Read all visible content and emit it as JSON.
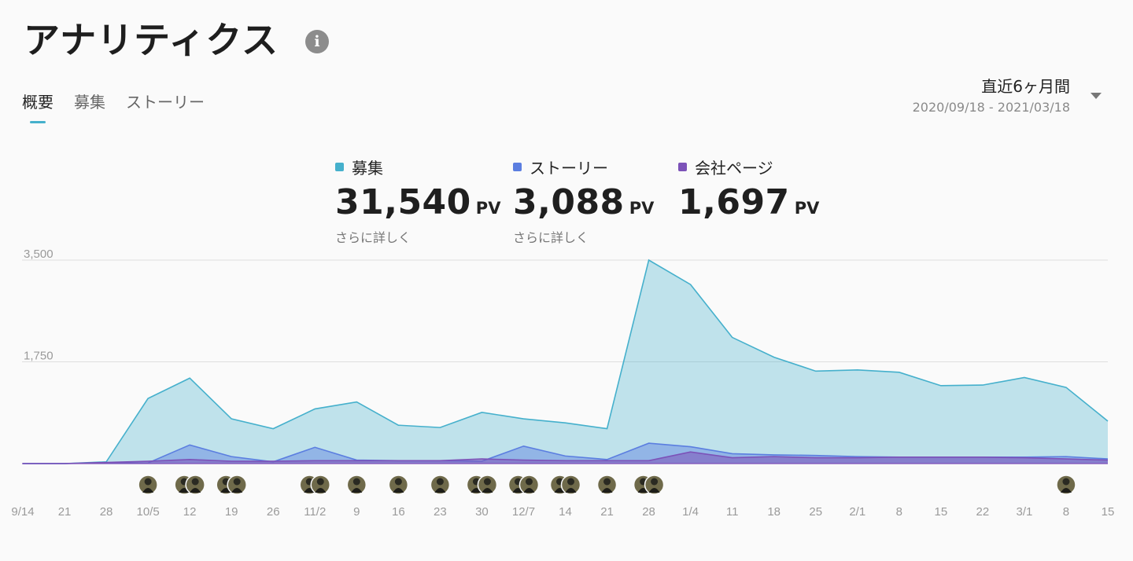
{
  "header": {
    "title": "アナリティクス",
    "info_icon": "info-icon"
  },
  "tabs": [
    {
      "label": "概要",
      "active": true
    },
    {
      "label": "募集",
      "active": false
    },
    {
      "label": "ストーリー",
      "active": false
    }
  ],
  "range": {
    "label": "直近6ヶ月間",
    "dates": "2020/09/18 - 2021/03/18",
    "caret_icon": "caret-down-icon"
  },
  "metrics": [
    {
      "name": "募集",
      "value": "31,540",
      "unit": "PV",
      "link": "さらに詳しく",
      "color": "#45b0cc"
    },
    {
      "name": "ストーリー",
      "value": "3,088",
      "unit": "PV",
      "link": "さらに詳しく",
      "color": "#5b7ee0"
    },
    {
      "name": "会社ページ",
      "value": "1,697",
      "unit": "PV",
      "link": "",
      "color": "#7c52b8"
    }
  ],
  "chart_data": {
    "type": "area",
    "x": [
      "9/14",
      "21",
      "28",
      "10/5",
      "12",
      "19",
      "26",
      "11/2",
      "9",
      "16",
      "23",
      "30",
      "12/7",
      "14",
      "21",
      "28",
      "1/4",
      "11",
      "18",
      "25",
      "2/1",
      "8",
      "15",
      "22",
      "3/1",
      "8",
      "15"
    ],
    "yticks": [
      "1,750",
      "3,500"
    ],
    "ylim": [
      0,
      3500
    ],
    "grid": true,
    "series": [
      {
        "name": "募集",
        "color": "#45b0cc",
        "values": [
          0,
          0,
          30,
          1120,
          1470,
          770,
          600,
          940,
          1060,
          660,
          620,
          880,
          770,
          700,
          600,
          3500,
          3080,
          2170,
          1830,
          1590,
          1610,
          1570,
          1340,
          1350,
          1480,
          1310,
          730
        ]
      },
      {
        "name": "ストーリー",
        "color": "#5b7ee0",
        "values": [
          0,
          0,
          10,
          10,
          320,
          120,
          30,
          280,
          60,
          50,
          50,
          40,
          300,
          130,
          70,
          350,
          290,
          170,
          150,
          140,
          120,
          110,
          110,
          110,
          110,
          120,
          80
        ]
      },
      {
        "name": "会社ページ",
        "color": "#7c52b8",
        "values": [
          0,
          0,
          20,
          40,
          70,
          40,
          40,
          50,
          50,
          50,
          50,
          80,
          60,
          50,
          50,
          50,
          200,
          100,
          120,
          100,
          100,
          110,
          110,
          110,
          100,
          80,
          60
        ]
      }
    ],
    "events": [
      {
        "at": 3,
        "avatars": 1
      },
      {
        "at": 4,
        "avatars": 2
      },
      {
        "at": 5,
        "avatars": 2
      },
      {
        "at": 7,
        "avatars": 2
      },
      {
        "at": 8,
        "avatars": 1
      },
      {
        "at": 9,
        "avatars": 1
      },
      {
        "at": 10,
        "avatars": 1
      },
      {
        "at": 11,
        "avatars": 2
      },
      {
        "at": 12,
        "avatars": 2
      },
      {
        "at": 13,
        "avatars": 2
      },
      {
        "at": 14,
        "avatars": 1
      },
      {
        "at": 15,
        "avatars": 2
      },
      {
        "at": 25,
        "avatars": 1
      }
    ]
  }
}
